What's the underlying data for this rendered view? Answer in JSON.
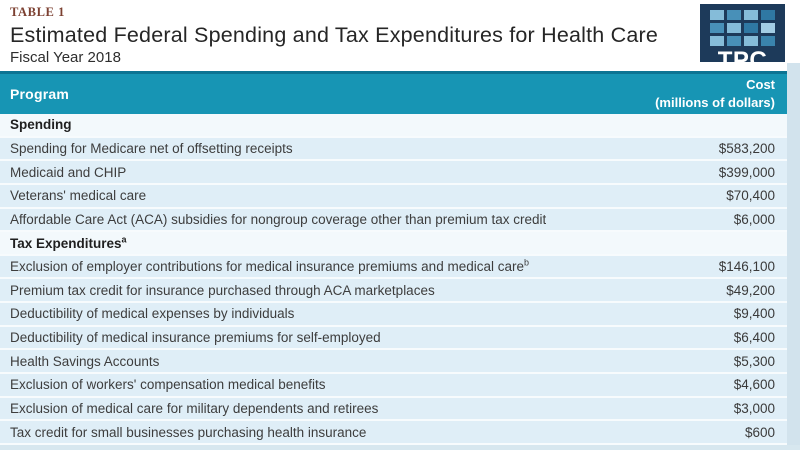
{
  "header": {
    "table_label": "TABLE 1",
    "title": "Estimated Federal Spending and Tax Expenditures for Health Care",
    "subtitle": "Fiscal Year 2018",
    "logo": {
      "text": "TPC",
      "navy": "#1d3a5a",
      "grid_colors": [
        "#85bcd9",
        "#4890b8",
        "#85bcd9",
        "#2f78a3",
        "#4890b8",
        "#85bcd9",
        "#2f78a3",
        "#a3cde4",
        "#85bcd9",
        "#4890b8",
        "#85bcd9",
        "#3a84ad"
      ]
    }
  },
  "table": {
    "columns": {
      "program": "Program",
      "cost_line1": "Cost",
      "cost_line2": "(millions of dollars)"
    },
    "rows": [
      {
        "type": "section",
        "label": "Spending",
        "sup": "",
        "value": ""
      },
      {
        "type": "data",
        "label": "Spending for Medicare net of offsetting receipts",
        "sup": "",
        "value": "$583,200"
      },
      {
        "type": "data",
        "label": "Medicaid and CHIP",
        "sup": "",
        "value": "$399,000"
      },
      {
        "type": "data",
        "label": "Veterans' medical care",
        "sup": "",
        "value": "$70,400"
      },
      {
        "type": "data",
        "label": "Affordable Care Act (ACA) subsidies for nongroup coverage other than premium tax credit",
        "sup": "",
        "value": "$6,000"
      },
      {
        "type": "section",
        "label": "Tax Expenditures",
        "sup": "a",
        "value": ""
      },
      {
        "type": "data",
        "label": "Exclusion of employer contributions for medical insurance premiums and medical care",
        "sup": "b",
        "value": "$146,100"
      },
      {
        "type": "data",
        "label": "Premium tax credit for insurance purchased through ACA marketplaces",
        "sup": "",
        "value": "$49,200"
      },
      {
        "type": "data",
        "label": "Deductibility of medical expenses by individuals",
        "sup": "",
        "value": "$9,400"
      },
      {
        "type": "data",
        "label": "Deductibility of medical insurance premiums for self-employed",
        "sup": "",
        "value": "$6,400"
      },
      {
        "type": "data",
        "label": "Health Savings Accounts",
        "sup": "",
        "value": "$5,300"
      },
      {
        "type": "data",
        "label": "Exclusion of workers' compensation medical benefits",
        "sup": "",
        "value": "$4,600"
      },
      {
        "type": "data",
        "label": "Exclusion of medical care for military dependents and retirees",
        "sup": "",
        "value": "$3,000"
      },
      {
        "type": "data",
        "label": "Tax credit for small businesses purchasing health insurance",
        "sup": "",
        "value": "$600"
      }
    ]
  },
  "colors": {
    "header_teal": "#1795b4",
    "header_top_border": "#0c7493",
    "data_row_bg": "#dfeef7",
    "section_row_bg": "#f3f9fc",
    "table_label_color": "#7c4031",
    "edge_strip": "#d2e3ed"
  },
  "chart_data": {
    "type": "table",
    "title": "Estimated Federal Spending and Tax Expenditures for Health Care",
    "subtitle": "Fiscal Year 2018",
    "columns": [
      "Program",
      "Cost (millions of dollars)"
    ],
    "sections": [
      {
        "section": "Spending",
        "rows": [
          {
            "program": "Spending for Medicare net of offsetting receipts",
            "cost_millions": 583200
          },
          {
            "program": "Medicaid and CHIP",
            "cost_millions": 399000
          },
          {
            "program": "Veterans' medical care",
            "cost_millions": 70400
          },
          {
            "program": "Affordable Care Act (ACA) subsidies for nongroup coverage other than premium tax credit",
            "cost_millions": 6000
          }
        ]
      },
      {
        "section": "Tax Expenditures",
        "rows": [
          {
            "program": "Exclusion of employer contributions for medical insurance premiums and medical care",
            "cost_millions": 146100
          },
          {
            "program": "Premium tax credit for insurance purchased through ACA marketplaces",
            "cost_millions": 49200
          },
          {
            "program": "Deductibility of medical expenses by individuals",
            "cost_millions": 9400
          },
          {
            "program": "Deductibility of medical insurance premiums for self-employed",
            "cost_millions": 6400
          },
          {
            "program": "Health Savings Accounts",
            "cost_millions": 5300
          },
          {
            "program": "Exclusion of workers' compensation medical benefits",
            "cost_millions": 4600
          },
          {
            "program": "Exclusion of medical care for military dependents and retirees",
            "cost_millions": 3000
          },
          {
            "program": "Tax credit for small businesses purchasing health insurance",
            "cost_millions": 600
          }
        ]
      }
    ]
  }
}
